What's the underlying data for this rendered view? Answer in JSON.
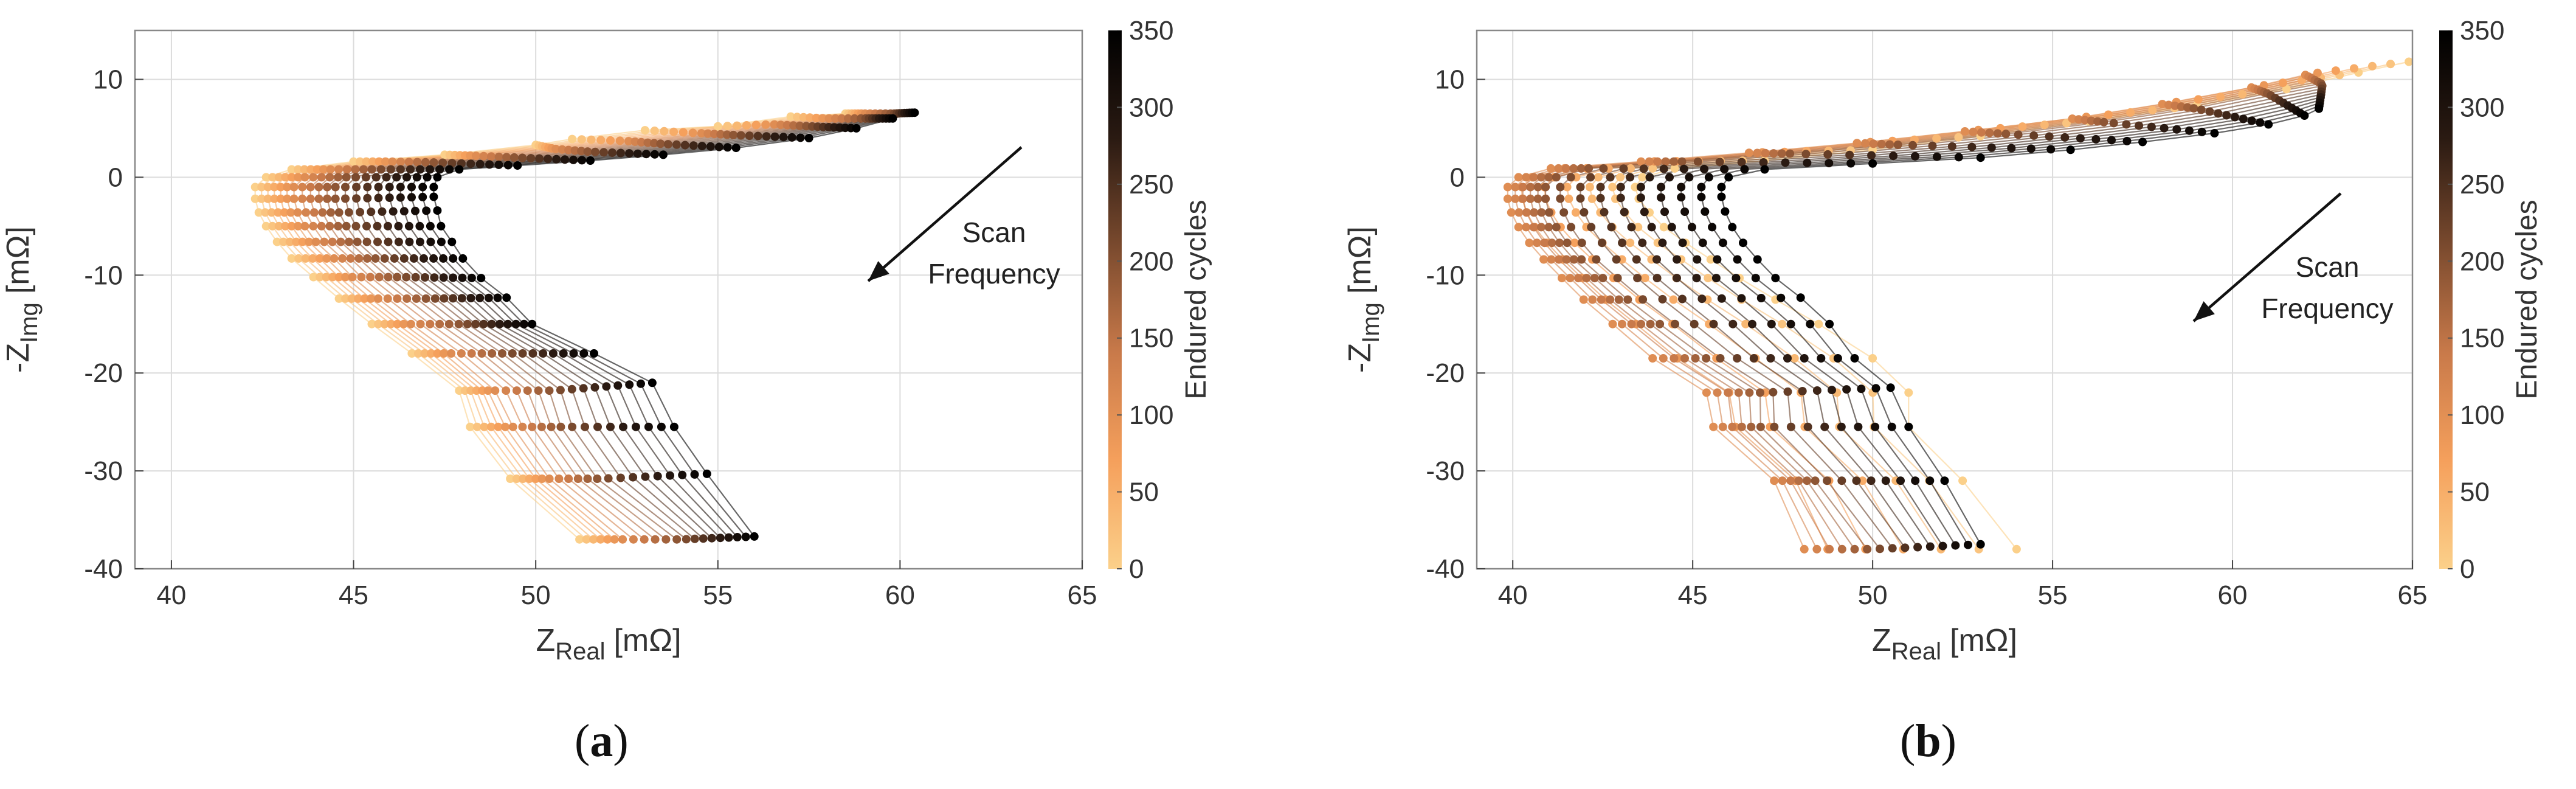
{
  "colors": {
    "cmap": [
      "#fbd08a",
      "#f5a05c",
      "#c97a4a",
      "#7a4a2e",
      "#2a1a12",
      "#000000"
    ],
    "grid": "#dcdcdc",
    "frame": "#888888"
  },
  "panels": [
    {
      "caption_letter": "a",
      "arrow_text_1": "Scan",
      "arrow_text_2": "Frequency",
      "colorbar_label": "Endured cycles",
      "xlabel_main": "Z",
      "xlabel_sub": "Real",
      "xlabel_unit": "[mΩ]",
      "ylabel_main": "-Z",
      "ylabel_sub": "Img",
      "ylabel_unit": "[mΩ]"
    },
    {
      "caption_letter": "b",
      "arrow_text_1": "Scan",
      "arrow_text_2": "Frequency",
      "colorbar_label": "Endured cycles",
      "xlabel_main": "Z",
      "xlabel_sub": "Real",
      "xlabel_unit": "[mΩ]",
      "ylabel_main": "-Z",
      "ylabel_sub": "Img",
      "ylabel_unit": "[mΩ]"
    }
  ],
  "chart_data": [
    {
      "type": "scatter",
      "title": "(a)",
      "xlabel": "Z_Real [mΩ]",
      "ylabel": "-Z_Img [mΩ]",
      "xlim": [
        39,
        65
      ],
      "ylim": [
        -40,
        15
      ],
      "xticks": [
        40,
        45,
        50,
        55,
        60,
        65
      ],
      "yticks": [
        -40,
        -30,
        -20,
        -10,
        0,
        10
      ],
      "grid": true,
      "colorbar": {
        "label": "Endured cycles",
        "range": [
          0,
          350
        ],
        "ticks": [
          0,
          50,
          100,
          150,
          200,
          250,
          300,
          350
        ]
      },
      "annotation": "Scan Frequency",
      "series": [
        {
          "name": "0 cycles",
          "cycles": 0,
          "points": [
            [
              51.2,
              -37.0
            ],
            [
              49.3,
              -30.8
            ],
            [
              48.2,
              -25.5
            ],
            [
              47.9,
              -21.8
            ],
            [
              46.6,
              -18.0
            ],
            [
              45.5,
              -15.0
            ],
            [
              44.6,
              -12.4
            ],
            [
              43.9,
              -10.2
            ],
            [
              43.3,
              -8.3
            ],
            [
              42.9,
              -6.6
            ],
            [
              42.6,
              -5.0
            ],
            [
              42.4,
              -3.6
            ],
            [
              42.3,
              -2.2
            ],
            [
              42.3,
              -1.0
            ],
            [
              42.6,
              0.0
            ],
            [
              43.3,
              0.8
            ],
            [
              45.0,
              1.6
            ],
            [
              47.5,
              2.3
            ],
            [
              50.0,
              3.3
            ],
            [
              51.0,
              3.9
            ],
            [
              53.0,
              4.8
            ],
            [
              55.0,
              5.2
            ],
            [
              57.0,
              6.2
            ],
            [
              58.5,
              6.5
            ]
          ]
        },
        {
          "name": "100 cycles",
          "cycles": 100,
          "points": [
            [
              52.3,
              -37.0
            ],
            [
              50.3,
              -30.8
            ],
            [
              49.3,
              -25.5
            ],
            [
              48.8,
              -21.8
            ],
            [
              47.6,
              -18.0
            ],
            [
              46.5,
              -15.0
            ],
            [
              45.6,
              -12.4
            ],
            [
              44.9,
              -10.2
            ],
            [
              44.4,
              -8.3
            ],
            [
              43.9,
              -6.6
            ],
            [
              43.6,
              -5.0
            ],
            [
              43.4,
              -3.6
            ],
            [
              43.3,
              -2.2
            ],
            [
              43.3,
              -1.0
            ],
            [
              43.6,
              0.0
            ],
            [
              44.3,
              0.8
            ],
            [
              46.0,
              1.6
            ],
            [
              48.3,
              2.2
            ],
            [
              50.5,
              2.9
            ],
            [
              52.5,
              3.7
            ],
            [
              54.5,
              4.5
            ],
            [
              56.5,
              5.4
            ],
            [
              58.0,
              6.0
            ],
            [
              59.0,
              6.5
            ]
          ]
        },
        {
          "name": "200 cycles",
          "cycles": 200,
          "points": [
            [
              54.0,
              -37.0
            ],
            [
              51.8,
              -30.8
            ],
            [
              50.8,
              -25.5
            ],
            [
              50.5,
              -21.8
            ],
            [
              49.2,
              -18.0
            ],
            [
              48.0,
              -15.0
            ],
            [
              47.1,
              -12.4
            ],
            [
              46.3,
              -10.2
            ],
            [
              45.7,
              -8.3
            ],
            [
              45.2,
              -6.6
            ],
            [
              44.9,
              -5.0
            ],
            [
              44.7,
              -3.6
            ],
            [
              44.6,
              -2.2
            ],
            [
              44.6,
              -1.0
            ],
            [
              44.9,
              0.0
            ],
            [
              45.6,
              0.8
            ],
            [
              47.3,
              1.5
            ],
            [
              49.5,
              2.0
            ],
            [
              51.5,
              2.6
            ],
            [
              53.5,
              3.4
            ],
            [
              55.5,
              4.3
            ],
            [
              57.5,
              5.2
            ],
            [
              59.0,
              6.0
            ],
            [
              59.8,
              6.5
            ]
          ]
        },
        {
          "name": "350 cycles",
          "cycles": 350,
          "points": [
            [
              56.0,
              -36.7
            ],
            [
              54.7,
              -30.3
            ],
            [
              53.8,
              -25.5
            ],
            [
              53.2,
              -21.0
            ],
            [
              51.6,
              -18.0
            ],
            [
              49.9,
              -15.0
            ],
            [
              49.2,
              -12.3
            ],
            [
              48.5,
              -10.3
            ],
            [
              48.0,
              -8.3
            ],
            [
              47.7,
              -6.6
            ],
            [
              47.4,
              -5.0
            ],
            [
              47.3,
              -3.4
            ],
            [
              47.2,
              -2.0
            ],
            [
              47.2,
              -1.0
            ],
            [
              47.3,
              0.0
            ],
            [
              47.9,
              0.8
            ],
            [
              49.5,
              1.2
            ],
            [
              51.5,
              1.7
            ],
            [
              53.5,
              2.3
            ],
            [
              55.5,
              3.0
            ],
            [
              57.5,
              4.0
            ],
            [
              58.8,
              5.0
            ],
            [
              59.8,
              6.0
            ],
            [
              60.4,
              6.6
            ]
          ]
        }
      ]
    },
    {
      "type": "scatter",
      "title": "(b)",
      "xlabel": "Z_Real [mΩ]",
      "ylabel": "-Z_Img [mΩ]",
      "xlim": [
        39,
        65
      ],
      "ylim": [
        -40,
        15
      ],
      "xticks": [
        40,
        45,
        50,
        55,
        60,
        65
      ],
      "yticks": [
        -40,
        -30,
        -20,
        -10,
        0,
        10
      ],
      "grid": true,
      "colorbar": {
        "label": "Endured cycles",
        "range": [
          0,
          350
        ],
        "ticks": [
          0,
          50,
          100,
          150,
          200,
          250,
          300,
          350
        ]
      },
      "annotation": "Scan Frequency",
      "series": [
        {
          "name": "0 cycles",
          "cycles": 0,
          "points": [
            [
              54.0,
              -38.0
            ],
            [
              52.5,
              -31.0
            ],
            [
              51.0,
              -25.5
            ],
            [
              51.0,
              -22.0
            ],
            [
              50.0,
              -18.5
            ],
            [
              48.5,
              -15.0
            ],
            [
              47.3,
              -12.5
            ],
            [
              46.3,
              -10.3
            ],
            [
              45.5,
              -8.4
            ],
            [
              44.8,
              -6.7
            ],
            [
              44.2,
              -5.1
            ],
            [
              43.8,
              -3.6
            ],
            [
              43.5,
              -2.2
            ],
            [
              43.4,
              -1.0
            ],
            [
              43.6,
              0.0
            ],
            [
              44.5,
              0.9
            ],
            [
              47.0,
              1.7
            ],
            [
              50.0,
              2.8
            ],
            [
              53.0,
              4.2
            ],
            [
              56.0,
              5.7
            ],
            [
              59.0,
              7.3
            ],
            [
              61.5,
              9.0
            ],
            [
              63.5,
              10.7
            ],
            [
              64.9,
              11.8
            ]
          ]
        },
        {
          "name": "100 cycles",
          "cycles": 100,
          "points": [
            [
              48.0,
              -38.0
            ],
            [
              47.2,
              -31.0
            ],
            [
              45.5,
              -25.5
            ],
            [
              45.3,
              -22.0
            ],
            [
              43.8,
              -18.5
            ],
            [
              42.7,
              -15.0
            ],
            [
              41.9,
              -12.5
            ],
            [
              41.3,
              -10.3
            ],
            [
              40.8,
              -8.4
            ],
            [
              40.4,
              -6.7
            ],
            [
              40.1,
              -5.1
            ],
            [
              39.9,
              -3.6
            ],
            [
              39.8,
              -2.2
            ],
            [
              39.8,
              -1.0
            ],
            [
              40.1,
              0.0
            ],
            [
              41.0,
              0.9
            ],
            [
              43.5,
              1.6
            ],
            [
              46.5,
              2.5
            ],
            [
              49.5,
              3.5
            ],
            [
              52.5,
              4.7
            ],
            [
              55.5,
              6.0
            ],
            [
              58.0,
              7.5
            ],
            [
              60.5,
              9.2
            ],
            [
              62.0,
              10.5
            ]
          ]
        },
        {
          "name": "200 cycles",
          "cycles": 200,
          "points": [
            [
              50.0,
              -38.0
            ],
            [
              48.5,
              -31.0
            ],
            [
              47.0,
              -25.5
            ],
            [
              47.0,
              -22.0
            ],
            [
              45.5,
              -18.5
            ],
            [
              44.2,
              -15.0
            ],
            [
              43.3,
              -12.5
            ],
            [
              42.6,
              -10.3
            ],
            [
              42.0,
              -8.4
            ],
            [
              41.6,
              -6.7
            ],
            [
              41.3,
              -5.1
            ],
            [
              41.1,
              -3.6
            ],
            [
              41.0,
              -2.2
            ],
            [
              41.0,
              -1.0
            ],
            [
              41.3,
              0.0
            ],
            [
              42.2,
              0.9
            ],
            [
              44.8,
              1.6
            ],
            [
              47.8,
              2.4
            ],
            [
              50.8,
              3.3
            ],
            [
              53.8,
              4.4
            ],
            [
              56.5,
              5.6
            ],
            [
              59.0,
              7.0
            ],
            [
              61.0,
              8.5
            ],
            [
              62.5,
              9.5
            ]
          ]
        },
        {
          "name": "350 cycles",
          "cycles": 350,
          "points": [
            [
              53.0,
              -37.5
            ],
            [
              52.0,
              -31.0
            ],
            [
              51.0,
              -25.5
            ],
            [
              50.5,
              -21.5
            ],
            [
              49.5,
              -18.5
            ],
            [
              48.8,
              -15.0
            ],
            [
              48.0,
              -12.3
            ],
            [
              47.3,
              -10.3
            ],
            [
              46.8,
              -8.4
            ],
            [
              46.4,
              -6.7
            ],
            [
              46.1,
              -5.1
            ],
            [
              45.9,
              -3.5
            ],
            [
              45.8,
              -2.0
            ],
            [
              45.8,
              -1.0
            ],
            [
              46.0,
              0.0
            ],
            [
              47.0,
              0.8
            ],
            [
              50.0,
              1.4
            ],
            [
              53.0,
              2.0
            ],
            [
              55.5,
              2.8
            ],
            [
              57.5,
              3.6
            ],
            [
              59.5,
              4.5
            ],
            [
              61.0,
              5.4
            ],
            [
              62.0,
              6.3
            ],
            [
              62.4,
              7.0
            ]
          ]
        }
      ]
    }
  ]
}
